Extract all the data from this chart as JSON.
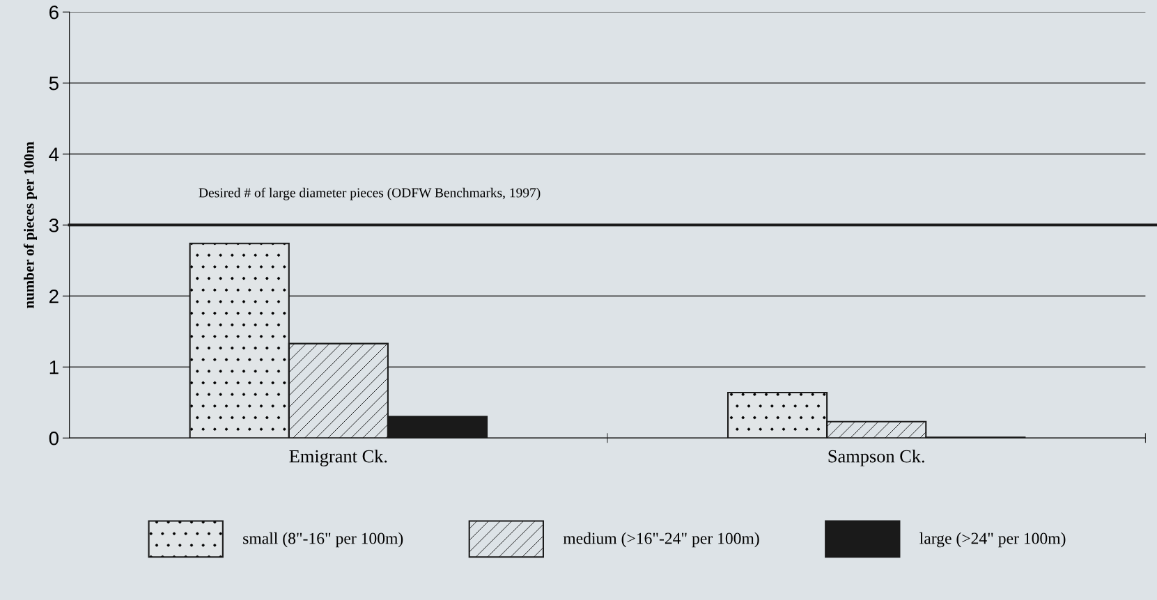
{
  "chart_data": {
    "type": "bar",
    "ylabel": "number of pieces per 100m",
    "categories": [
      "Emigrant Ck.",
      "Sampson Ck."
    ],
    "series": [
      {
        "name": "small (8\"-16\" per 100m)",
        "color": "#e1e5e7",
        "values": [
          2.74,
          0.64
        ]
      },
      {
        "name": "medium (>16\"-24\" per 100m)",
        "color": "#dde3e7",
        "values": [
          1.33,
          0.23
        ]
      },
      {
        "name": "large (>24\" per 100m)",
        "color": "#1a1a1a",
        "values": [
          0.3,
          0.01
        ]
      }
    ],
    "ylim": [
      0,
      6
    ],
    "yticks": [
      0,
      1,
      2,
      3,
      4,
      5,
      6
    ],
    "grid": "y",
    "legend": "bottom",
    "ref_lines": [
      {
        "axis": "y",
        "value": 3,
        "label": "Desired # of large diameter pieces (ODFW Benchmarks, 1997)",
        "color": "#1a1a1a"
      }
    ]
  }
}
